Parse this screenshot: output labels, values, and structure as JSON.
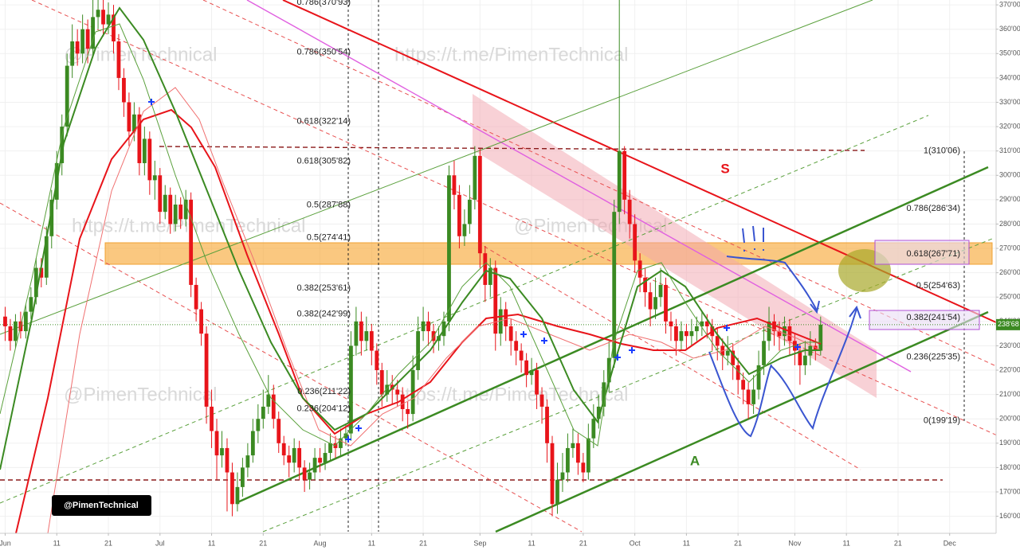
{
  "chart_data": {
    "type": "candlestick",
    "x": [
      "Jun 1",
      "Jun 2",
      "Jun 3",
      "Jun 4",
      "Jun 5",
      "Jun 6",
      "Jun 7",
      "Jun 8",
      "Jun 9",
      "Jun 10",
      "Jun 11",
      "Jun 12",
      "Jun 13",
      "Jun 14",
      "Jun 15",
      "Jun 16",
      "Jun 17",
      "Jun 18",
      "Jun 19",
      "Jun 20",
      "Jun 21",
      "Jun 22",
      "Jun 23",
      "Jun 24",
      "Jun 25",
      "Jun 26",
      "Jun 27",
      "Jun 28",
      "Jun 29",
      "Jun 30",
      "Jul 1",
      "Jul 2",
      "Jul 3",
      "Jul 4",
      "Jul 5",
      "Jul 6",
      "Jul 7",
      "Jul 8",
      "Jul 9",
      "Jul 10",
      "Jul 11",
      "Jul 12",
      "Jul 13",
      "Jul 14",
      "Jul 15",
      "Jul 16",
      "Jul 17",
      "Jul 18",
      "Jul 19",
      "Jul 20",
      "Jul 21",
      "Jul 22",
      "Jul 23",
      "Jul 24",
      "Jul 25",
      "Jul 26",
      "Jul 27",
      "Jul 28",
      "Jul 29",
      "Jul 30",
      "Jul 31",
      "Aug 1",
      "Aug 2",
      "Aug 3",
      "Aug 4",
      "Aug 5",
      "Aug 6",
      "Aug 7",
      "Aug 8",
      "Aug 9",
      "Aug 10",
      "Aug 11",
      "Aug 12",
      "Aug 13",
      "Aug 14",
      "Aug 15",
      "Aug 16",
      "Aug 17",
      "Aug 18",
      "Aug 19",
      "Aug 20",
      "Aug 21",
      "Aug 22",
      "Aug 23",
      "Aug 24",
      "Aug 25",
      "Aug 26",
      "Aug 27",
      "Aug 28",
      "Aug 29",
      "Aug 30",
      "Aug 31",
      "Sep 1",
      "Sep 2",
      "Sep 3",
      "Sep 4",
      "Sep 5",
      "Sep 6",
      "Sep 7",
      "Sep 8",
      "Sep 9",
      "Sep 10",
      "Sep 11",
      "Sep 12",
      "Sep 13",
      "Sep 14",
      "Sep 15",
      "Sep 16",
      "Sep 17",
      "Sep 18",
      "Sep 19",
      "Sep 20",
      "Sep 21",
      "Sep 22",
      "Sep 23",
      "Sep 24",
      "Sep 25",
      "Sep 26",
      "Sep 27",
      "Sep 28",
      "Sep 29",
      "Sep 30",
      "Oct 1",
      "Oct 2",
      "Oct 3",
      "Oct 4",
      "Oct 5",
      "Oct 6",
      "Oct 7",
      "Oct 8",
      "Oct 9",
      "Oct 10",
      "Oct 11",
      "Oct 12",
      "Oct 13",
      "Oct 14",
      "Oct 15",
      "Oct 16",
      "Oct 17",
      "Oct 18",
      "Oct 19",
      "Oct 20",
      "Oct 21",
      "Oct 22",
      "Oct 23",
      "Oct 24",
      "Oct 25",
      "Oct 26",
      "Oct 27",
      "Oct 28",
      "Oct 29",
      "Oct 30",
      "Oct 31",
      "Nov 1",
      "Nov 2",
      "Nov 3",
      "Nov 4",
      "Nov 5",
      "Nov 6"
    ],
    "ohlc": [
      [
        242,
        246,
        232,
        238
      ],
      [
        238,
        241,
        228,
        232
      ],
      [
        232,
        243,
        229,
        240
      ],
      [
        240,
        244,
        233,
        236
      ],
      [
        236,
        247,
        233,
        244
      ],
      [
        244,
        254,
        241,
        250
      ],
      [
        250,
        266,
        247,
        262
      ],
      [
        262,
        266,
        254,
        258
      ],
      [
        258,
        279,
        255,
        275
      ],
      [
        275,
        294,
        270,
        290
      ],
      [
        290,
        310,
        286,
        305
      ],
      [
        305,
        325,
        300,
        320
      ],
      [
        320,
        350,
        316,
        345
      ],
      [
        345,
        362,
        340,
        355
      ],
      [
        355,
        360,
        345,
        350
      ],
      [
        350,
        366,
        346,
        360
      ],
      [
        360,
        364,
        346,
        352
      ],
      [
        352,
        372,
        349,
        365
      ],
      [
        365,
        372,
        360,
        368
      ],
      [
        368,
        372,
        357,
        362
      ],
      [
        362,
        371,
        358,
        366
      ],
      [
        366,
        370,
        350,
        355
      ],
      [
        355,
        358,
        335,
        340
      ],
      [
        340,
        344,
        324,
        330
      ],
      [
        330,
        334,
        312,
        318
      ],
      [
        318,
        330,
        314,
        325
      ],
      [
        325,
        328,
        300,
        305
      ],
      [
        305,
        320,
        300,
        315
      ],
      [
        315,
        318,
        292,
        298
      ],
      [
        298,
        306,
        290,
        300
      ],
      [
        300,
        303,
        280,
        285
      ],
      [
        285,
        296,
        282,
        292
      ],
      [
        292,
        295,
        276,
        280
      ],
      [
        280,
        292,
        277,
        288
      ],
      [
        288,
        291,
        278,
        282
      ],
      [
        282,
        294,
        279,
        290
      ],
      [
        290,
        293,
        250,
        255
      ],
      [
        255,
        258,
        240,
        245
      ],
      [
        245,
        248,
        230,
        235
      ],
      [
        235,
        238,
        198,
        205
      ],
      [
        205,
        212,
        188,
        195
      ],
      [
        195,
        200,
        175,
        185
      ],
      [
        185,
        195,
        180,
        188
      ],
      [
        188,
        192,
        162,
        178
      ],
      [
        178,
        182,
        160,
        165
      ],
      [
        165,
        178,
        162,
        172
      ],
      [
        172,
        184,
        168,
        180
      ],
      [
        180,
        190,
        176,
        185
      ],
      [
        185,
        200,
        182,
        195
      ],
      [
        195,
        206,
        190,
        200
      ],
      [
        200,
        212,
        196,
        205
      ],
      [
        205,
        218,
        202,
        210
      ],
      [
        210,
        214,
        196,
        200
      ],
      [
        200,
        203,
        186,
        190
      ],
      [
        190,
        193,
        181,
        185
      ],
      [
        185,
        189,
        176,
        182
      ],
      [
        182,
        192,
        178,
        188
      ],
      [
        188,
        191,
        175,
        180
      ],
      [
        180,
        183,
        170,
        175
      ],
      [
        175,
        182,
        171,
        178
      ],
      [
        178,
        188,
        175,
        184
      ],
      [
        184,
        188,
        178,
        182
      ],
      [
        182,
        190,
        179,
        186
      ],
      [
        186,
        194,
        183,
        190
      ],
      [
        190,
        193,
        184,
        188
      ],
      [
        188,
        196,
        185,
        192
      ],
      [
        192,
        198,
        189,
        194
      ],
      [
        194,
        236,
        191,
        230
      ],
      [
        230,
        246,
        226,
        240
      ],
      [
        240,
        244,
        226,
        232
      ],
      [
        232,
        242,
        228,
        236
      ],
      [
        236,
        239,
        222,
        228
      ],
      [
        228,
        231,
        214,
        220
      ],
      [
        220,
        223,
        205,
        210
      ],
      [
        210,
        220,
        207,
        214
      ],
      [
        214,
        218,
        206,
        212
      ],
      [
        212,
        216,
        205,
        210
      ],
      [
        210,
        213,
        199,
        204
      ],
      [
        204,
        207,
        196,
        202
      ],
      [
        202,
        226,
        199,
        220
      ],
      [
        220,
        242,
        216,
        236
      ],
      [
        236,
        246,
        232,
        240
      ],
      [
        240,
        244,
        230,
        236
      ],
      [
        236,
        239,
        227,
        232
      ],
      [
        232,
        238,
        228,
        234
      ],
      [
        234,
        244,
        230,
        240
      ],
      [
        240,
        304,
        236,
        300
      ],
      [
        300,
        306,
        286,
        292
      ],
      [
        292,
        296,
        270,
        275
      ],
      [
        275,
        286,
        271,
        280
      ],
      [
        280,
        296,
        276,
        290
      ],
      [
        290,
        312,
        286,
        308
      ],
      [
        308,
        311,
        262,
        268
      ],
      [
        268,
        271,
        248,
        255
      ],
      [
        255,
        266,
        250,
        262
      ],
      [
        262,
        265,
        228,
        235
      ],
      [
        235,
        250,
        230,
        245
      ],
      [
        245,
        248,
        232,
        238
      ],
      [
        238,
        241,
        226,
        232
      ],
      [
        232,
        236,
        222,
        228
      ],
      [
        228,
        231,
        219,
        224
      ],
      [
        224,
        227,
        213,
        218
      ],
      [
        218,
        225,
        214,
        220
      ],
      [
        220,
        223,
        204,
        210
      ],
      [
        210,
        213,
        198,
        205
      ],
      [
        205,
        208,
        182,
        190
      ],
      [
        190,
        193,
        160,
        165
      ],
      [
        165,
        182,
        161,
        175
      ],
      [
        175,
        186,
        170,
        178
      ],
      [
        178,
        194,
        174,
        188
      ],
      [
        188,
        196,
        184,
        190
      ],
      [
        190,
        194,
        177,
        182
      ],
      [
        182,
        186,
        174,
        178
      ],
      [
        178,
        198,
        175,
        192
      ],
      [
        192,
        206,
        188,
        200
      ],
      [
        200,
        210,
        196,
        205
      ],
      [
        205,
        220,
        201,
        215
      ],
      [
        215,
        232,
        211,
        225
      ],
      [
        225,
        290,
        221,
        285
      ],
      [
        285,
        372,
        280,
        310
      ],
      [
        310,
        312,
        284,
        290
      ],
      [
        290,
        294,
        274,
        280
      ],
      [
        280,
        284,
        260,
        265
      ],
      [
        265,
        268,
        252,
        258
      ],
      [
        258,
        262,
        246,
        252
      ],
      [
        252,
        256,
        238,
        245
      ],
      [
        245,
        258,
        241,
        250
      ],
      [
        250,
        262,
        246,
        255
      ],
      [
        255,
        258,
        235,
        240
      ],
      [
        240,
        244,
        232,
        238
      ],
      [
        238,
        241,
        226,
        232
      ],
      [
        232,
        240,
        228,
        236
      ],
      [
        236,
        239,
        229,
        234
      ],
      [
        234,
        241,
        230,
        236
      ],
      [
        236,
        242,
        232,
        238
      ],
      [
        238,
        244,
        234,
        240
      ],
      [
        240,
        243,
        233,
        238
      ],
      [
        238,
        241,
        228,
        234
      ],
      [
        234,
        237,
        224,
        230
      ],
      [
        230,
        233,
        220,
        226
      ],
      [
        226,
        234,
        222,
        228
      ],
      [
        228,
        231,
        216,
        222
      ],
      [
        222,
        225,
        210,
        216
      ],
      [
        216,
        219,
        206,
        212
      ],
      [
        212,
        215,
        200,
        206
      ],
      [
        206,
        218,
        202,
        212
      ],
      [
        212,
        228,
        208,
        222
      ],
      [
        222,
        238,
        218,
        232
      ],
      [
        232,
        246,
        228,
        240
      ],
      [
        240,
        243,
        230,
        236
      ],
      [
        236,
        240,
        228,
        234
      ],
      [
        234,
        242,
        230,
        238
      ],
      [
        238,
        241,
        226,
        232
      ],
      [
        232,
        235,
        222,
        228
      ],
      [
        228,
        231,
        214,
        222
      ],
      [
        222,
        232,
        218,
        226
      ],
      [
        226,
        236,
        222,
        230
      ],
      [
        230,
        233,
        224,
        228
      ],
      [
        228,
        242,
        226,
        238.68
      ]
    ],
    "up_color": "#3b8a22",
    "down_color": "#e8141a",
    "xlim": [
      "May 31",
      "Dec 10"
    ],
    "xticks": [
      {
        "value": "Jun 1",
        "label": "Jun"
      },
      {
        "value": "Jun 11",
        "label": "11"
      },
      {
        "value": "Jun 21",
        "label": "21"
      },
      {
        "value": "Jul 1",
        "label": "Jul"
      },
      {
        "value": "Jul 11",
        "label": "11"
      },
      {
        "value": "Jul 21",
        "label": "21"
      },
      {
        "value": "Aug 1",
        "label": "Aug"
      },
      {
        "value": "Aug 11",
        "label": "11"
      },
      {
        "value": "Aug 21",
        "label": "21"
      },
      {
        "value": "Sep 1",
        "label": "Sep"
      },
      {
        "value": "Sep 11",
        "label": "11"
      },
      {
        "value": "Sep 21",
        "label": "21"
      },
      {
        "value": "Oct 1",
        "label": "Oct"
      },
      {
        "value": "Oct 11",
        "label": "11"
      },
      {
        "value": "Oct 21",
        "label": "21"
      },
      {
        "value": "Nov 1",
        "label": "Nov"
      },
      {
        "value": "Nov 11",
        "label": "11"
      },
      {
        "value": "Nov 21",
        "label": "21"
      },
      {
        "value": "Dec 1",
        "label": "Dec"
      }
    ],
    "ylim": [
      153,
      372
    ],
    "yticks": [
      {
        "value": 160,
        "label": "160'00"
      },
      {
        "value": 170,
        "label": "170'00"
      },
      {
        "value": 180,
        "label": "180'00"
      },
      {
        "value": 190,
        "label": "190'00"
      },
      {
        "value": 200,
        "label": "200'00"
      },
      {
        "value": 210,
        "label": "210'00"
      },
      {
        "value": 220,
        "label": "220'00"
      },
      {
        "value": 230,
        "label": "230'00"
      },
      {
        "value": 240,
        "label": "240'00"
      },
      {
        "value": 250,
        "label": "250'00"
      },
      {
        "value": 260,
        "label": "260'00"
      },
      {
        "value": 270,
        "label": "270'00"
      },
      {
        "value": 280,
        "label": "280'00"
      },
      {
        "value": 290,
        "label": "290'00"
      },
      {
        "value": 300,
        "label": "300'00"
      },
      {
        "value": 310,
        "label": "310'00"
      },
      {
        "value": 320,
        "label": "320'00"
      },
      {
        "value": 330,
        "label": "330'00"
      },
      {
        "value": 340,
        "label": "340'00"
      },
      {
        "value": 350,
        "label": "350'00"
      },
      {
        "value": 360,
        "label": "360'00"
      },
      {
        "value": 370,
        "label": "370'00"
      }
    ],
    "grid": true,
    "last_price": {
      "value": 238.68,
      "label": "238'68"
    },
    "fib_left": [
      {
        "value": 370.93,
        "label": "0.786(370'93)"
      },
      {
        "value": 350.54,
        "label": "0.786(350'54)"
      },
      {
        "value": 322.14,
        "label": "0.618(322'14)"
      },
      {
        "value": 305.82,
        "label": "0.618(305'82)"
      },
      {
        "value": 287.88,
        "label": "0.5(287'88)"
      },
      {
        "value": 274.41,
        "label": "0.5(274'41)"
      },
      {
        "value": 253.61,
        "label": "0.382(253'61)"
      },
      {
        "value": 242.99,
        "label": "0.382(242'99)"
      },
      {
        "value": 211.22,
        "label": "0.236(211'22)"
      },
      {
        "value": 204.12,
        "label": "0.236(204'12)"
      }
    ],
    "fib_right": [
      {
        "value": 310.06,
        "label": "1(310'06)"
      },
      {
        "value": 286.34,
        "label": "0.786(286'34)"
      },
      {
        "value": 267.71,
        "label": "0.618(267'71)"
      },
      {
        "value": 254.63,
        "label": "0.5(254'63)"
      },
      {
        "value": 241.54,
        "label": "0.382(241'54)"
      },
      {
        "value": 225.35,
        "label": "0.236(225'35)"
      },
      {
        "value": 199.19,
        "label": "0(199'19)"
      }
    ],
    "watermarks": [
      "@PimenTechnical",
      "https://t.me/PimenTechnical",
      "https://t.me/PimenTechnical",
      "@PimenTechnical",
      "@PimenTechnical",
      "https://t.me/PimenTechnical"
    ],
    "labels": [
      "S",
      "A"
    ],
    "badge": "@PimenTechnical"
  }
}
